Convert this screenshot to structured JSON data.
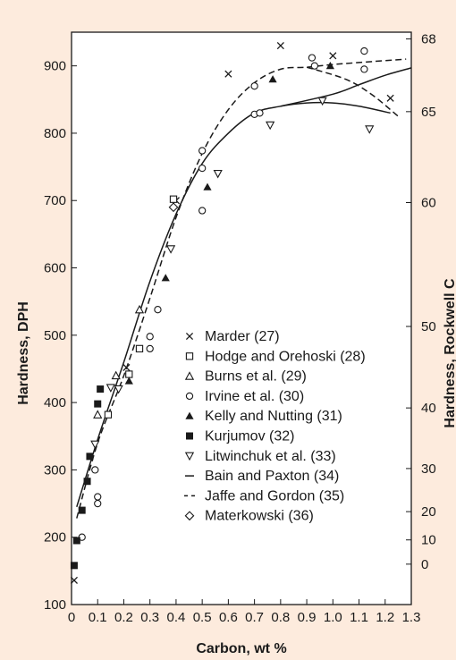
{
  "chart_data": {
    "type": "scatter",
    "xlabel": "Carbon, wt %",
    "ylabel": "Hardness, DPH",
    "y2label": "Hardness, Rockwell C",
    "xlim": [
      0,
      1.3
    ],
    "ylim": [
      100,
      950
    ],
    "x_ticks": [
      "0",
      "0.1",
      "0.2",
      "0.3",
      "0.4",
      "0.5",
      "0.6",
      "0.7",
      "0.8",
      "0.9",
      "1.0",
      "1.1",
      "1.2",
      "1.3"
    ],
    "y_ticks": [
      "100",
      "200",
      "300",
      "400",
      "500",
      "600",
      "700",
      "800",
      "900"
    ],
    "y2_ticks": [
      {
        "label": "68",
        "dph": 940
      },
      {
        "label": "65",
        "dph": 832
      },
      {
        "label": "60",
        "dph": 697
      },
      {
        "label": "50",
        "dph": 513
      },
      {
        "label": "40",
        "dph": 392
      },
      {
        "label": "30",
        "dph": 302
      },
      {
        "label": "20",
        "dph": 238
      },
      {
        "label": "10",
        "dph": 196
      },
      {
        "label": "0",
        "dph": 160
      }
    ],
    "legend_position": "lower-right",
    "series": [
      {
        "name": "Marder (27)",
        "marker": "x",
        "points": [
          [
            0.01,
            136
          ],
          [
            0.21,
            452
          ],
          [
            0.4,
            700
          ],
          [
            0.6,
            888
          ],
          [
            0.8,
            930
          ],
          [
            1.0,
            915
          ],
          [
            1.22,
            852
          ]
        ]
      },
      {
        "name": "Hodge and Orehoski (28)",
        "marker": "open-square",
        "points": [
          [
            0.14,
            382
          ],
          [
            0.22,
            442
          ],
          [
            0.26,
            480
          ],
          [
            0.39,
            702
          ]
        ]
      },
      {
        "name": "Burns et al. (29)",
        "marker": "open-triangle-up",
        "points": [
          [
            0.1,
            382
          ],
          [
            0.17,
            440
          ],
          [
            0.26,
            538
          ]
        ]
      },
      {
        "name": "Irvine et al. (30)",
        "marker": "open-circle",
        "points": [
          [
            0.04,
            200
          ],
          [
            0.09,
            300
          ],
          [
            0.1,
            250
          ],
          [
            0.1,
            260
          ],
          [
            0.3,
            498
          ],
          [
            0.3,
            480
          ],
          [
            0.33,
            538
          ],
          [
            0.5,
            774
          ],
          [
            0.5,
            748
          ],
          [
            0.5,
            685
          ],
          [
            0.7,
            870
          ],
          [
            0.7,
            828
          ],
          [
            0.72,
            830
          ],
          [
            0.92,
            912
          ],
          [
            0.93,
            900
          ],
          [
            1.12,
            922
          ],
          [
            1.12,
            895
          ]
        ]
      },
      {
        "name": "Kelly and Nutting (31)",
        "marker": "filled-triangle-up",
        "points": [
          [
            0.22,
            432
          ],
          [
            0.36,
            585
          ],
          [
            0.52,
            720
          ],
          [
            0.77,
            880
          ],
          [
            0.99,
            900
          ]
        ]
      },
      {
        "name": "Kurjumov (32)",
        "marker": "filled-square",
        "points": [
          [
            0.01,
            158
          ],
          [
            0.02,
            195
          ],
          [
            0.04,
            240
          ],
          [
            0.06,
            283
          ],
          [
            0.07,
            320
          ],
          [
            0.1,
            398
          ],
          [
            0.11,
            420
          ]
        ]
      },
      {
        "name": "Litwinchuk et al. (33)",
        "marker": "open-triangle-down",
        "points": [
          [
            0.09,
            338
          ],
          [
            0.15,
            422
          ],
          [
            0.18,
            420
          ],
          [
            0.38,
            628
          ],
          [
            0.56,
            740
          ],
          [
            0.76,
            812
          ],
          [
            0.96,
            848
          ],
          [
            1.14,
            806
          ]
        ]
      },
      {
        "name": "Bain and Paxton (34)",
        "marker": "solid-line",
        "points": [
          [
            0.02,
            245
          ],
          [
            0.1,
            345
          ],
          [
            0.2,
            460
          ],
          [
            0.3,
            580
          ],
          [
            0.4,
            680
          ],
          [
            0.5,
            755
          ],
          [
            0.6,
            800
          ],
          [
            0.7,
            830
          ],
          [
            0.8,
            840
          ],
          [
            0.9,
            845
          ],
          [
            1.0,
            845
          ],
          [
            1.1,
            840
          ],
          [
            1.22,
            830
          ]
        ]
      },
      {
        "name": "Jaffe and Gordon (35)",
        "marker": "dashed-line",
        "points": [
          [
            0.02,
            228
          ],
          [
            0.1,
            340
          ],
          [
            0.2,
            440
          ],
          [
            0.3,
            555
          ],
          [
            0.4,
            675
          ],
          [
            0.5,
            770
          ],
          [
            0.6,
            835
          ],
          [
            0.7,
            875
          ],
          [
            0.8,
            895
          ],
          [
            0.9,
            898
          ],
          [
            1.0,
            902
          ],
          [
            1.1,
            905
          ],
          [
            1.28,
            910
          ]
        ]
      },
      {
        "name": "Materkowski (36)",
        "marker": "open-diamond",
        "points": [
          [
            0.39,
            690
          ]
        ]
      }
    ],
    "extra_curves": [
      {
        "marker": "solid-line",
        "points": [
          [
            0.8,
            840
          ],
          [
            1.0,
            858
          ],
          [
            1.1,
            872
          ],
          [
            1.2,
            886
          ],
          [
            1.3,
            897
          ]
        ]
      },
      {
        "marker": "dashed-line",
        "points": [
          [
            0.9,
            898
          ],
          [
            1.05,
            880
          ],
          [
            1.15,
            857
          ],
          [
            1.25,
            825
          ]
        ]
      }
    ]
  }
}
